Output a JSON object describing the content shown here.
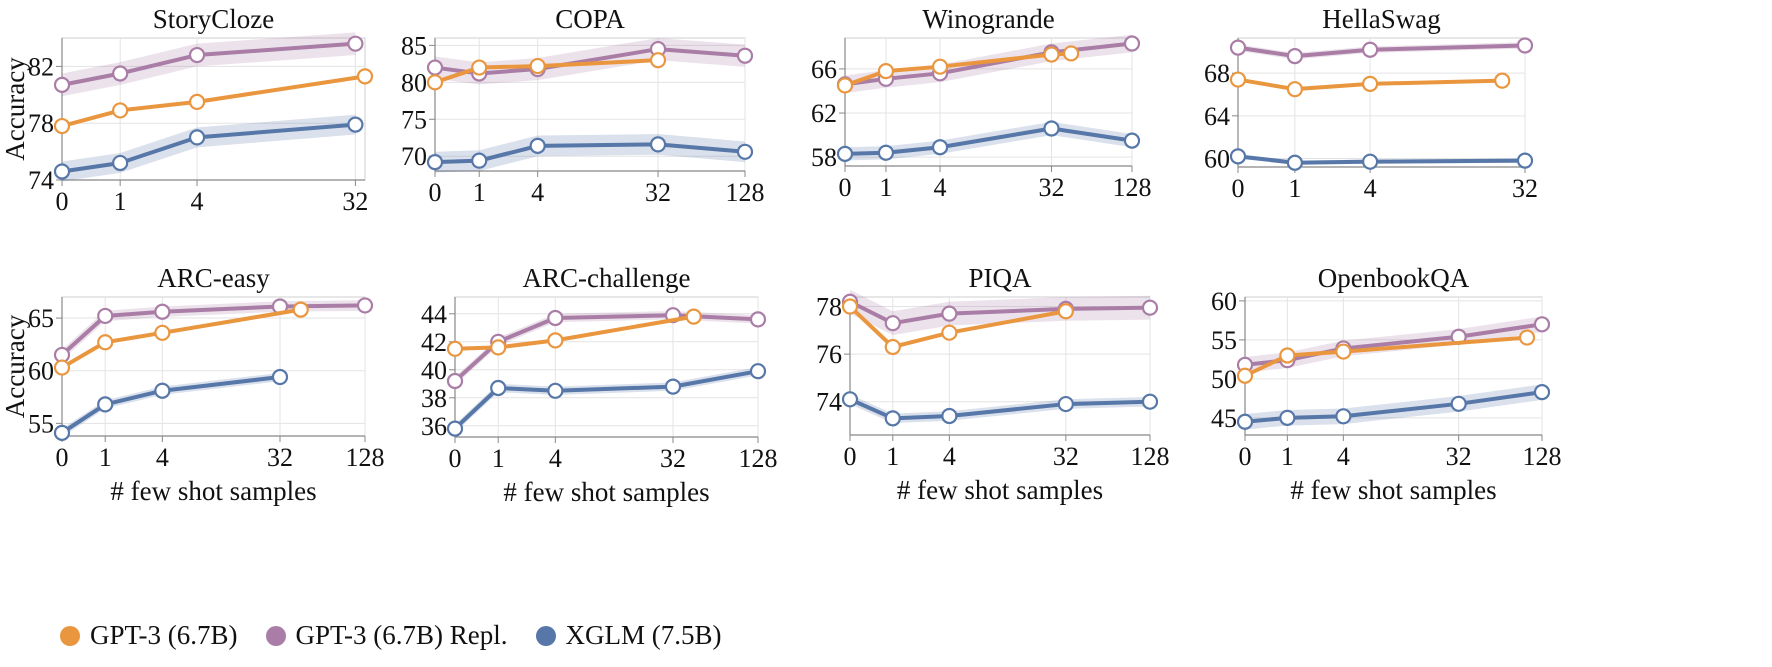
{
  "figure": {
    "colors": {
      "GPT-3 (6.7B)": "#E9963F",
      "GPT-3 (6.7B) Repl.": "#A97DA6",
      "XGLM (7.5B)": "#5677A8",
      "grid": "#e3e3e3",
      "axis": "#888888"
    },
    "legend": [
      {
        "label": "GPT-3 (6.7B)",
        "color": "#E9963F"
      },
      {
        "label": "GPT-3 (6.7B) Repl.",
        "color": "#A97DA6"
      },
      {
        "label": "XGLM (7.5B)",
        "color": "#5677A8"
      }
    ]
  },
  "chart_data": [
    {
      "type": "line",
      "title": "StoryCloze",
      "xlabel": "",
      "ylabel": "Accuracy",
      "x_ticks": [
        "0",
        "1",
        "4",
        "32"
      ],
      "y_ticks": [
        74,
        78,
        82
      ],
      "ylim": [
        74,
        84
      ],
      "x_max": 36,
      "series": [
        {
          "name": "GPT-3 (6.7B)",
          "x": [
            0,
            1,
            4,
            36
          ],
          "y": [
            77.8,
            78.9,
            79.5,
            81.3
          ],
          "band": 0
        },
        {
          "name": "GPT-3 (6.7B) Repl.",
          "x": [
            0,
            1,
            4,
            32
          ],
          "y": [
            80.7,
            81.5,
            82.8,
            83.6
          ],
          "band": 0.8
        },
        {
          "name": "XGLM (7.5B)",
          "x": [
            0,
            1,
            4,
            32
          ],
          "y": [
            74.6,
            75.2,
            77.0,
            77.9
          ],
          "band": 0.7
        }
      ]
    },
    {
      "type": "line",
      "title": "COPA",
      "xlabel": "",
      "ylabel": "",
      "x_ticks": [
        "0",
        "1",
        "4",
        "32",
        "128"
      ],
      "y_ticks": [
        70,
        75,
        80,
        85
      ],
      "ylim": [
        68,
        86
      ],
      "x_max": 128,
      "series": [
        {
          "name": "GPT-3 (6.7B)",
          "x": [
            0,
            1,
            4,
            32
          ],
          "y": [
            80.0,
            82.0,
            82.2,
            83.0
          ],
          "band": 0
        },
        {
          "name": "GPT-3 (6.7B) Repl.",
          "x": [
            0,
            1,
            4,
            32,
            128
          ],
          "y": [
            82.0,
            81.2,
            81.8,
            84.5,
            83.6
          ],
          "band": 1.5
        },
        {
          "name": "XGLM (7.5B)",
          "x": [
            0,
            1,
            4,
            32,
            128
          ],
          "y": [
            69.2,
            69.4,
            71.4,
            71.6,
            70.6
          ],
          "band": 1.4
        }
      ]
    },
    {
      "type": "line",
      "title": "Winogrande",
      "xlabel": "",
      "ylabel": "",
      "x_ticks": [
        "0",
        "1",
        "4",
        "32",
        "128"
      ],
      "y_ticks": [
        58,
        62,
        66
      ],
      "ylim": [
        57.2,
        68.8
      ],
      "x_max": 128,
      "series": [
        {
          "name": "GPT-3 (6.7B)",
          "x": [
            0,
            1,
            4,
            32,
            45
          ],
          "y": [
            64.5,
            65.8,
            66.2,
            67.3,
            67.4
          ],
          "band": 0
        },
        {
          "name": "GPT-3 (6.7B) Repl.",
          "x": [
            0,
            1,
            4,
            32,
            128
          ],
          "y": [
            64.6,
            65.1,
            65.6,
            67.5,
            68.3
          ],
          "band": 0.8
        },
        {
          "name": "XGLM (7.5B)",
          "x": [
            0,
            1,
            4,
            32,
            128
          ],
          "y": [
            58.3,
            58.4,
            58.9,
            60.6,
            59.5
          ],
          "band": 0.6
        }
      ]
    },
    {
      "type": "line",
      "title": "HellaSwag",
      "xlabel": "",
      "ylabel": "",
      "x_ticks": [
        "0",
        "1",
        "4",
        "32"
      ],
      "y_ticks": [
        60,
        64,
        68
      ],
      "ylim": [
        59.2,
        71.3
      ],
      "x_max": 32,
      "series": [
        {
          "name": "GPT-3 (6.7B)",
          "x": [
            0,
            1,
            4,
            24
          ],
          "y": [
            67.4,
            66.5,
            67.0,
            67.3
          ],
          "band": 0
        },
        {
          "name": "GPT-3 (6.7B) Repl.",
          "x": [
            0,
            1,
            4,
            32
          ],
          "y": [
            70.4,
            69.6,
            70.2,
            70.6
          ],
          "band": 0.3
        },
        {
          "name": "XGLM (7.5B)",
          "x": [
            0,
            1,
            4,
            32
          ],
          "y": [
            60.2,
            59.6,
            59.7,
            59.8
          ],
          "band": 0.2
        }
      ]
    },
    {
      "type": "line",
      "title": "ARC-easy",
      "xlabel": "# few shot samples",
      "ylabel": "Accuracy",
      "x_ticks": [
        "0",
        "1",
        "4",
        "32",
        "128"
      ],
      "y_ticks": [
        55,
        60,
        65
      ],
      "ylim": [
        53.8,
        67
      ],
      "x_max": 128,
      "series": [
        {
          "name": "GPT-3 (6.7B)",
          "x": [
            0,
            1,
            4,
            45
          ],
          "y": [
            60.3,
            62.7,
            63.6,
            65.8
          ],
          "band": 0
        },
        {
          "name": "GPT-3 (6.7B) Repl.",
          "x": [
            0,
            1,
            4,
            32,
            128
          ],
          "y": [
            61.5,
            65.2,
            65.6,
            66.1,
            66.2
          ],
          "band": 0.5
        },
        {
          "name": "XGLM (7.5B)",
          "x": [
            0,
            1,
            4,
            32
          ],
          "y": [
            54.1,
            56.8,
            58.1,
            59.4
          ],
          "band": 0.4
        }
      ]
    },
    {
      "type": "line",
      "title": "ARC-challenge",
      "xlabel": "# few shot samples",
      "ylabel": "",
      "x_ticks": [
        "0",
        "1",
        "4",
        "32",
        "128"
      ],
      "y_ticks": [
        36,
        38,
        40,
        42,
        44
      ],
      "ylim": [
        35.2,
        45.2
      ],
      "x_max": 128,
      "series": [
        {
          "name": "GPT-3 (6.7B)",
          "x": [
            0,
            1,
            4,
            45
          ],
          "y": [
            41.5,
            41.6,
            42.1,
            43.8
          ],
          "band": 0
        },
        {
          "name": "GPT-3 (6.7B) Repl.",
          "x": [
            0,
            1,
            4,
            32,
            128
          ],
          "y": [
            39.2,
            42.0,
            43.7,
            43.9,
            43.6
          ],
          "band": 0.3
        },
        {
          "name": "XGLM (7.5B)",
          "x": [
            0,
            1,
            4,
            32,
            128
          ],
          "y": [
            35.8,
            38.7,
            38.5,
            38.8,
            39.9
          ],
          "band": 0.3
        }
      ]
    },
    {
      "type": "line",
      "title": "PIQA",
      "xlabel": "# few shot samples",
      "ylabel": "",
      "x_ticks": [
        "0",
        "1",
        "4",
        "32",
        "128"
      ],
      "y_ticks": [
        74,
        76,
        78
      ],
      "ylim": [
        72.6,
        78.4
      ],
      "x_max": 128,
      "series": [
        {
          "name": "GPT-3 (6.7B)",
          "x": [
            0,
            1,
            4,
            32
          ],
          "y": [
            78.0,
            76.3,
            76.9,
            77.8
          ],
          "band": 0
        },
        {
          "name": "GPT-3 (6.7B) Repl.",
          "x": [
            0,
            1,
            4,
            32,
            128
          ],
          "y": [
            78.2,
            77.3,
            77.7,
            77.9,
            77.95
          ],
          "band": 0.5
        },
        {
          "name": "XGLM (7.5B)",
          "x": [
            0,
            1,
            4,
            32,
            128
          ],
          "y": [
            74.1,
            73.3,
            73.4,
            73.9,
            74.0
          ],
          "band": 0.2
        }
      ]
    },
    {
      "type": "line",
      "title": "OpenbookQA",
      "xlabel": "# few shot samples",
      "ylabel": "",
      "x_ticks": [
        "0",
        "1",
        "4",
        "32",
        "128"
      ],
      "y_ticks": [
        45,
        50,
        55,
        60
      ],
      "ylim": [
        42.8,
        60.5
      ],
      "x_max": 128,
      "series": [
        {
          "name": "GPT-3 (6.7B)",
          "x": [
            0,
            1,
            4,
            100
          ],
          "y": [
            50.4,
            53.0,
            53.5,
            55.3
          ],
          "band": 0
        },
        {
          "name": "GPT-3 (6.7B) Repl.",
          "x": [
            0,
            1,
            4,
            32,
            128
          ],
          "y": [
            51.8,
            52.4,
            53.9,
            55.4,
            57.0
          ],
          "band": 1.0
        },
        {
          "name": "XGLM (7.5B)",
          "x": [
            0,
            1,
            4,
            32,
            128
          ],
          "y": [
            44.5,
            45.0,
            45.2,
            46.8,
            48.3
          ],
          "band": 1.0
        }
      ]
    }
  ]
}
